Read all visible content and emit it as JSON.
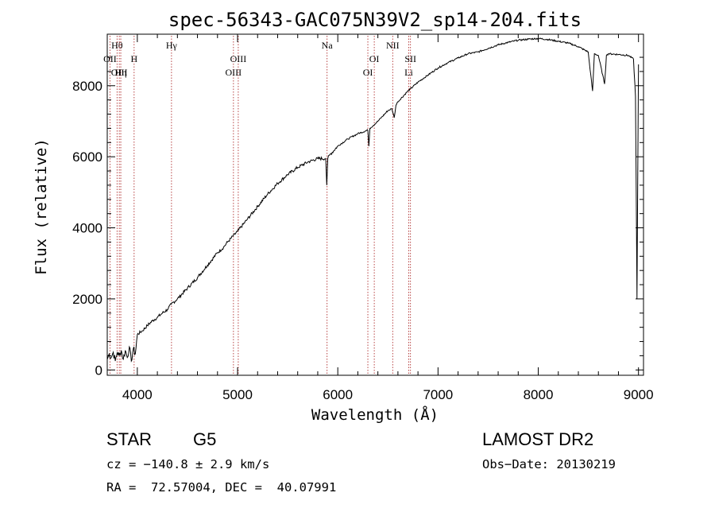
{
  "chart_data": {
    "type": "line",
    "title": "spec-56343-GAC075N39V2_sp14-204.fits",
    "xlabel": "Wavelength (Å)",
    "ylabel": "Flux (relative)",
    "xlim": [
      3700,
      9050
    ],
    "ylim": [
      -150,
      9450
    ],
    "x_ticks": [
      4000,
      5000,
      6000,
      7000,
      8000,
      9000
    ],
    "y_ticks": [
      0,
      2000,
      4000,
      6000,
      8000
    ],
    "grid": false,
    "series": [
      {
        "x": [
          3700,
          3720,
          3740,
          3760,
          3780,
          3800,
          3820,
          3840,
          3860,
          3880,
          3900,
          3920,
          3940,
          3960,
          3980,
          4000,
          4050,
          4100,
          4150,
          4200,
          4250,
          4300,
          4340,
          4400,
          4500,
          4600,
          4700,
          4800,
          4860,
          4900,
          5000,
          5100,
          5200,
          5300,
          5400,
          5500,
          5600,
          5700,
          5800,
          5880,
          5890,
          5900,
          5920,
          6000,
          6100,
          6200,
          6300,
          6310,
          6320,
          6400,
          6500,
          6540,
          6563,
          6580,
          6600,
          6700,
          6800,
          6900,
          7000,
          7100,
          7200,
          7300,
          7400,
          7500,
          7600,
          7700,
          7800,
          7900,
          8000,
          8100,
          8200,
          8300,
          8400,
          8498,
          8542,
          8560,
          8600,
          8662,
          8680,
          8700,
          8800,
          8900,
          8950,
          8970,
          8985,
          9000
        ],
        "y": [
          300,
          450,
          350,
          500,
          250,
          500,
          400,
          550,
          300,
          550,
          350,
          650,
          250,
          600,
          450,
          1000,
          1100,
          1250,
          1380,
          1480,
          1600,
          1700,
          1850,
          2000,
          2300,
          2600,
          2950,
          3300,
          3450,
          3600,
          3900,
          4250,
          4600,
          4950,
          5250,
          5500,
          5700,
          5850,
          5950,
          5950,
          5200,
          5950,
          6050,
          6300,
          6500,
          6650,
          6750,
          6300,
          6800,
          7000,
          7300,
          7350,
          7100,
          7450,
          7550,
          7850,
          8100,
          8300,
          8500,
          8650,
          8780,
          8900,
          8950,
          9050,
          9150,
          9220,
          9280,
          9310,
          9330,
          9300,
          9250,
          9200,
          9100,
          8950,
          7850,
          8900,
          8850,
          8050,
          8850,
          8900,
          8880,
          8850,
          8750,
          7700,
          2000,
          8600
        ]
      }
    ],
    "lines": [
      {
        "wavelength": 3727,
        "name": "OII",
        "row": 2
      },
      {
        "wavelength": 3798,
        "name": "Hθ",
        "row": 1
      },
      {
        "wavelength": 3820,
        "name": "OIII",
        "row": 3
      },
      {
        "wavelength": 3835,
        "name": "Hη",
        "row": 3
      },
      {
        "wavelength": 3968,
        "name": "H",
        "row": 2
      },
      {
        "wavelength": 4341,
        "name": "Hγ",
        "row": 1
      },
      {
        "wavelength": 4959,
        "name": "OIII",
        "row": 3
      },
      {
        "wavelength": 5007,
        "name": "OIII",
        "row": 2
      },
      {
        "wavelength": 5893,
        "name": "Na",
        "row": 1
      },
      {
        "wavelength": 6300,
        "name": "OI",
        "row": 3
      },
      {
        "wavelength": 6364,
        "name": "OI",
        "row": 2
      },
      {
        "wavelength": 6548,
        "name": "NII",
        "row": 1
      },
      {
        "wavelength": 6708,
        "name": "Li",
        "row": 3
      },
      {
        "wavelength": 6725,
        "name": "SII",
        "row": 2
      }
    ]
  },
  "info": {
    "object_type": "STAR",
    "subclass": "G5",
    "survey": "LAMOST DR2",
    "cz_line": "cz = −140.8 ± 2.9 km/s",
    "obs_date_line": "Obs−Date: 20130219",
    "coord_line": "RA =  72.57004, DEC =  40.07991"
  }
}
